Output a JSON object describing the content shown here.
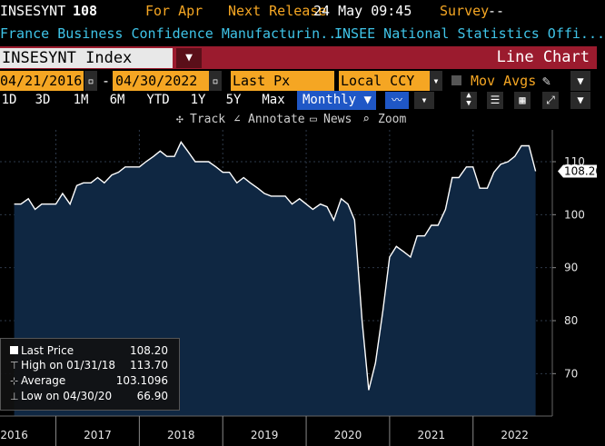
{
  "header": {
    "ticker": "INSESYNT",
    "value": "108",
    "period": "For Apr",
    "next_release_label": "Next Release",
    "next_release_value": "24 May 09:45",
    "survey_label": "Survey",
    "survey_value": "--"
  },
  "subheader": {
    "name": "France Business Confidence Manufacturin...",
    "source": "INSEE National Statistics Offi..."
  },
  "toolbar": {
    "security": "INSESYNT Index",
    "dropdown_glyph": "▼",
    "chart_type": "Line Chart"
  },
  "date_row": {
    "start_date": "04/21/2016",
    "end_date": "04/30/2022",
    "separator": "-",
    "field": "Last Px",
    "currency": "Local CCY",
    "mov_avgs": "Mov Avgs"
  },
  "periods": [
    "1D",
    "3D",
    "1M",
    "6M",
    "YTD",
    "1Y",
    "5Y",
    "Max"
  ],
  "frequency": "Monthly",
  "tools": {
    "track": "Track",
    "annotate": "Annotate",
    "news": "News",
    "zoom": "Zoom"
  },
  "legend": {
    "last_label": "Last Price",
    "last_value": "108.20",
    "high_label": "High on 01/31/18",
    "high_value": "113.70",
    "avg_label": "Average",
    "avg_value": "103.1096",
    "low_label": "Low on 04/30/20",
    "low_value": "66.90"
  },
  "colors": {
    "accent_orange": "#f5a623",
    "title_cyan": "#3fc4e8",
    "bar_red": "#9b1b2e",
    "area_fill": "#0f2742",
    "line": "#ffffff",
    "selected_blue": "#1f57c6"
  },
  "chart_data": {
    "type": "area",
    "title": "",
    "xlabel": "",
    "ylabel": "",
    "ylim": [
      62,
      116
    ],
    "yticks": [
      70,
      80,
      90,
      100,
      110
    ],
    "last_value_label": "108.20",
    "year_labels": [
      {
        "label": "2016",
        "x": 2016.0
      },
      {
        "label": "2017",
        "x": 2017.0
      },
      {
        "label": "2018",
        "x": 2018.0
      },
      {
        "label": "2019",
        "x": 2019.0
      },
      {
        "label": "2020",
        "x": 2020.0
      },
      {
        "label": "2021",
        "x": 2021.0
      },
      {
        "label": "2022",
        "x": 2022.0
      }
    ],
    "year_separators": [
      2016.5,
      2017.5,
      2018.5,
      2019.5,
      2020.5,
      2021.5
    ],
    "x": [
      2016.0,
      2016.08,
      2016.17,
      2016.25,
      2016.33,
      2016.42,
      2016.5,
      2016.58,
      2016.67,
      2016.75,
      2016.83,
      2016.92,
      2017.0,
      2017.08,
      2017.17,
      2017.25,
      2017.33,
      2017.42,
      2017.5,
      2017.58,
      2017.67,
      2017.75,
      2017.83,
      2017.92,
      2018.0,
      2018.08,
      2018.17,
      2018.25,
      2018.33,
      2018.42,
      2018.5,
      2018.58,
      2018.67,
      2018.75,
      2018.83,
      2018.92,
      2019.0,
      2019.08,
      2019.17,
      2019.25,
      2019.33,
      2019.42,
      2019.5,
      2019.58,
      2019.67,
      2019.75,
      2019.83,
      2019.92,
      2020.0,
      2020.08,
      2020.17,
      2020.25,
      2020.33,
      2020.42,
      2020.5,
      2020.58,
      2020.67,
      2020.75,
      2020.83,
      2020.92,
      2021.0,
      2021.08,
      2021.17,
      2021.25,
      2021.33,
      2021.42,
      2021.5,
      2021.58,
      2021.67,
      2021.75,
      2021.83,
      2021.92,
      2022.0,
      2022.08,
      2022.17,
      2022.25
    ],
    "values": [
      102,
      102,
      103,
      101,
      102,
      102,
      102,
      104,
      102,
      105.5,
      106,
      106,
      107,
      106,
      107.5,
      108,
      109,
      109,
      109,
      110,
      111,
      112,
      111,
      111,
      113.7,
      112,
      110,
      110,
      110,
      109,
      108,
      108,
      106,
      107,
      106,
      105,
      104,
      103.5,
      103.5,
      103.5,
      102,
      103,
      102,
      101,
      102,
      101.5,
      99,
      103,
      102,
      99,
      80,
      66.9,
      72,
      82,
      92,
      94,
      93,
      92,
      96,
      96,
      98,
      98,
      101,
      107,
      107,
      109,
      109,
      105,
      105,
      108,
      109.5,
      110,
      111,
      113,
      113,
      108.2
    ]
  }
}
